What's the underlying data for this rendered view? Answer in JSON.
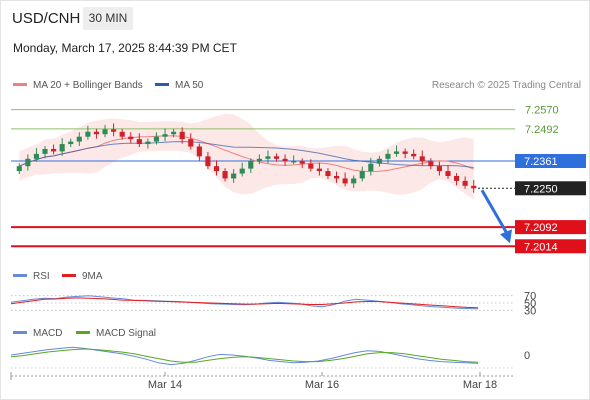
{
  "header": {
    "symbol": "USD/CNH",
    "timeframe": "30 MIN",
    "timestamp": "Monday, March 17, 2025 8:44:39 PM CET"
  },
  "legend": {
    "ma20_bb": "MA 20 + Bollinger Bands",
    "ma50": "MA 50",
    "credit": "Research © 2025 Trading Central"
  },
  "colors": {
    "ma20": "#f08080",
    "ma50": "#2e5aa8",
    "bands": "#fde2e2",
    "resistance": "#8fbf6a",
    "pivot": "#2f6fdc",
    "support": "#e0101a",
    "arrow": "#2f6fdc",
    "candle_up": "#2e8b57",
    "candle_down": "#d0202a",
    "rsi": "#6688dd",
    "rsi_ma": "#e02020",
    "macd": "#6688dd",
    "macd_signal": "#55aa22"
  },
  "chart_data": {
    "type": "candlestick",
    "price_axis": {
      "min": 7.195,
      "max": 7.265
    },
    "x_labels": [
      "Mar 14",
      "Mar 16",
      "Mar 18"
    ],
    "levels": [
      {
        "value": 7.257,
        "label": "7.2570",
        "kind": "resistance"
      },
      {
        "value": 7.2492,
        "label": "7.2492",
        "kind": "resistance"
      },
      {
        "value": 7.2361,
        "label": "7.2361",
        "kind": "pivot"
      },
      {
        "value": 7.225,
        "label": "7.2250",
        "kind": "last"
      },
      {
        "value": 7.2092,
        "label": "7.2092",
        "kind": "support"
      },
      {
        "value": 7.2014,
        "label": "7.2014",
        "kind": "support"
      }
    ],
    "closes": [
      7.234,
      7.237,
      7.239,
      7.241,
      7.24,
      7.243,
      7.244,
      7.246,
      7.248,
      7.247,
      7.249,
      7.248,
      7.246,
      7.245,
      7.243,
      7.244,
      7.246,
      7.247,
      7.248,
      7.245,
      7.242,
      7.238,
      7.234,
      7.232,
      7.229,
      7.231,
      7.233,
      7.236,
      7.237,
      7.238,
      7.237,
      7.236,
      7.236,
      7.235,
      7.233,
      7.232,
      7.23,
      7.229,
      7.227,
      7.229,
      7.232,
      7.235,
      7.237,
      7.239,
      7.24,
      7.239,
      7.238,
      7.236,
      7.234,
      7.232,
      7.23,
      7.228,
      7.226,
      7.225
    ],
    "rsi": {
      "name": "RSI",
      "ma_name": "9MA",
      "levels": [
        "70",
        "50",
        "30"
      ],
      "values": [
        52,
        56,
        60,
        63,
        62,
        66,
        68,
        70,
        67,
        64,
        62,
        58,
        57,
        56,
        55,
        54,
        52,
        50,
        48,
        47,
        46,
        45,
        47,
        50,
        52,
        50,
        48,
        42,
        40,
        45,
        55,
        60,
        58,
        55,
        52,
        48,
        45,
        42,
        40,
        38,
        36,
        35,
        34
      ],
      "ma": [
        48,
        52,
        56,
        60,
        61,
        63,
        64,
        63,
        62,
        60,
        58,
        57,
        56,
        55,
        54,
        53,
        52,
        51,
        50,
        49,
        48,
        47,
        47,
        48,
        49,
        48,
        47,
        46,
        46,
        48,
        50,
        53,
        54,
        54,
        52,
        50,
        48,
        46,
        44,
        42,
        40,
        38,
        37
      ]
    },
    "macd": {
      "name": "MACD",
      "signal_name": "MACD Signal",
      "zero_label": "0",
      "macd": [
        0.5,
        0.8,
        1.1,
        1.4,
        1.6,
        1.8,
        1.6,
        1.3,
        1.0,
        0.7,
        0.3,
        -0.2,
        -0.8,
        -1.1,
        -0.9,
        -0.4,
        0.2,
        0.6,
        0.5,
        0.3,
        0.0,
        -0.4,
        -0.6,
        -0.8,
        -0.7,
        -0.5,
        -0.1,
        0.4,
        0.9,
        1.2,
        1.1,
        0.7,
        0.3,
        -0.1,
        -0.4,
        -0.6,
        -0.7,
        -0.8,
        -0.9
      ],
      "signal": [
        0.2,
        0.4,
        0.7,
        1.0,
        1.2,
        1.4,
        1.5,
        1.4,
        1.2,
        1.0,
        0.7,
        0.3,
        -0.1,
        -0.5,
        -0.7,
        -0.7,
        -0.4,
        -0.1,
        0.1,
        0.2,
        0.1,
        -0.1,
        -0.3,
        -0.5,
        -0.6,
        -0.6,
        -0.4,
        -0.1,
        0.3,
        0.7,
        0.9,
        0.9,
        0.7,
        0.4,
        0.1,
        -0.2,
        -0.4,
        -0.6,
        -0.7
      ]
    }
  }
}
